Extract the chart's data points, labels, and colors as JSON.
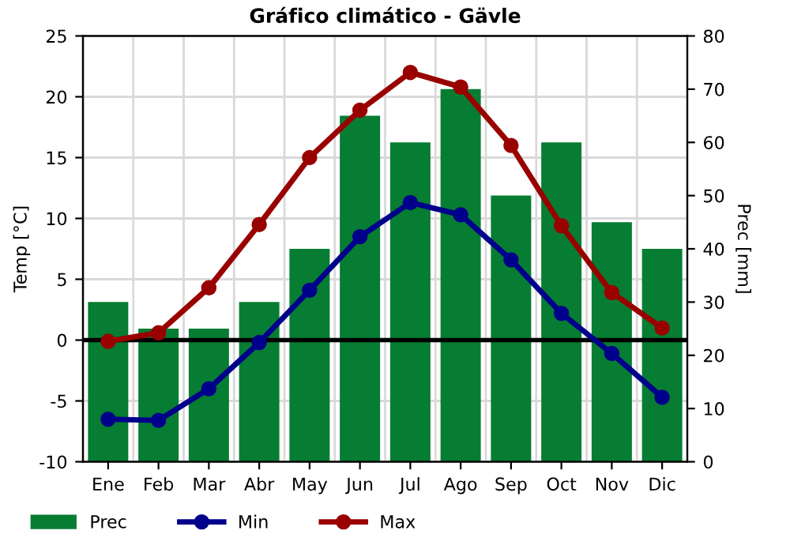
{
  "chart_data": {
    "type": "line",
    "title": "Gráfico climático - Gävle",
    "ylabel": "Temp [°C]",
    "y2label": "Prec [mm]",
    "categories": [
      "Ene",
      "Feb",
      "Mar",
      "Abr",
      "May",
      "Jun",
      "Jul",
      "Ago",
      "Sep",
      "Oct",
      "Nov",
      "Dic"
    ],
    "series": [
      {
        "name": "Prec",
        "type": "bar",
        "axis": "y2",
        "color": "#067d32",
        "values": [
          30,
          25,
          25,
          30,
          40,
          65,
          60,
          70,
          50,
          60,
          45,
          40
        ]
      },
      {
        "name": "Min",
        "color": "#00008b",
        "values": [
          -6.5,
          -6.6,
          -4.0,
          -0.2,
          4.1,
          8.5,
          11.3,
          10.3,
          6.6,
          2.2,
          -1.1,
          -4.7
        ]
      },
      {
        "name": "Max",
        "color": "#990000",
        "values": [
          -0.1,
          0.6,
          4.3,
          9.5,
          15.0,
          18.9,
          22.0,
          20.8,
          16.0,
          9.4,
          3.9,
          1.0
        ]
      }
    ],
    "ylim": [
      -10,
      25
    ],
    "yticks": [
      -10,
      -5,
      0,
      5,
      10,
      15,
      20,
      25
    ],
    "y2lim": [
      0,
      80
    ],
    "y2ticks": [
      0,
      10,
      20,
      30,
      40,
      50,
      60,
      70,
      80
    ],
    "ref_lines": [
      {
        "axis": "y",
        "value": 0,
        "color": "#000000"
      }
    ],
    "grid": true,
    "legend": "bottom",
    "marker": "circle",
    "line_style": "solid"
  }
}
